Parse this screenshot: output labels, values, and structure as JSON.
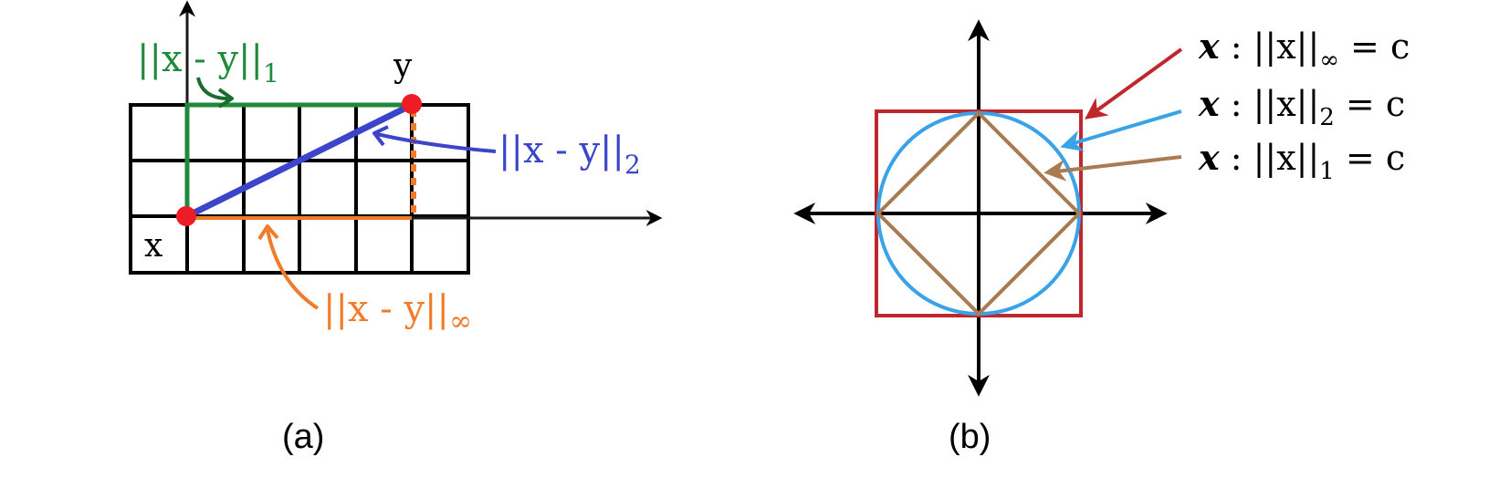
{
  "colors": {
    "axis": "#000000",
    "grid": "#000000",
    "l1": "#1f8a3b",
    "l2": "#3b45c9",
    "linf": "#f07c2a",
    "point": "#ee1c24",
    "square": "#c0272d",
    "circle": "#3aa2e8",
    "diamond": "#a87b52"
  },
  "panel_a": {
    "caption": "(a)",
    "point_x_label": "x",
    "point_y_label": "y",
    "l1_label": {
      "main": "||x - y||",
      "sub": "1"
    },
    "l2_label": {
      "main": "||x - y||",
      "sub": "2"
    },
    "linf_label": {
      "main": "||x - y||",
      "sub": "∞"
    }
  },
  "panel_b": {
    "caption": "(b)",
    "legend": [
      {
        "lhs": "x",
        "colon": " : ",
        "norm": "||x||",
        "sub": "∞",
        "rhs": " = c",
        "color": "#c0272d"
      },
      {
        "lhs": "x",
        "colon": " : ",
        "norm": "||x||",
        "sub": "2",
        "rhs": " = c",
        "color": "#3aa2e8"
      },
      {
        "lhs": "x",
        "colon": " : ",
        "norm": "||x||",
        "sub": "1",
        "rhs": " = c",
        "color": "#a87b52"
      }
    ]
  }
}
